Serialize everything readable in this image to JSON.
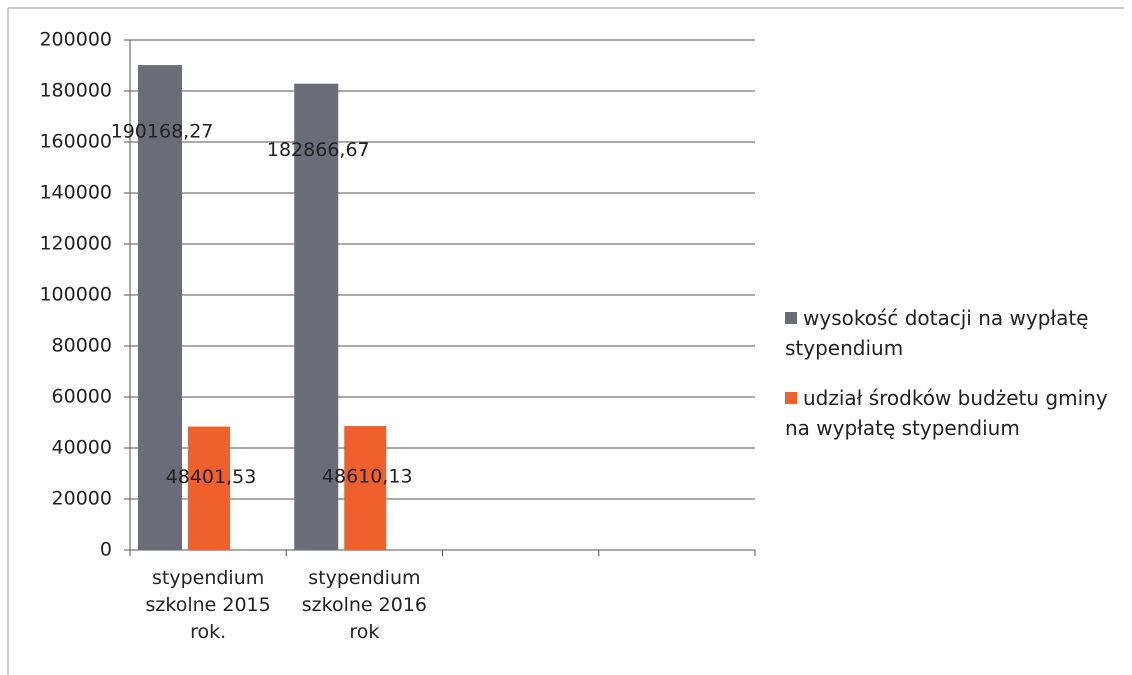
{
  "chart_data": {
    "type": "bar",
    "categories": [
      "stypendium szkolne 2015 rok.",
      "stypendium szkolne 2016 rok",
      null,
      null
    ],
    "series": [
      {
        "name": "wysokość dotacji na wypłatę stypendium",
        "color": "#6c6c78",
        "values": [
          190168.27,
          182866.67,
          null,
          null
        ],
        "value_labels": [
          "190168,27",
          "182866,67",
          null,
          null
        ]
      },
      {
        "name": "udział środków budżetu gminy na wypłatę stypendium",
        "color": "#f0602c",
        "values": [
          48401.53,
          48610.13,
          null,
          null
        ],
        "value_labels": [
          "48401,53",
          "48610,13",
          null,
          null
        ]
      }
    ],
    "ylim": [
      0,
      200000
    ],
    "yticks": [
      0,
      20000,
      40000,
      60000,
      80000,
      100000,
      120000,
      140000,
      160000,
      180000,
      200000
    ],
    "grid": true,
    "legend": "right"
  }
}
